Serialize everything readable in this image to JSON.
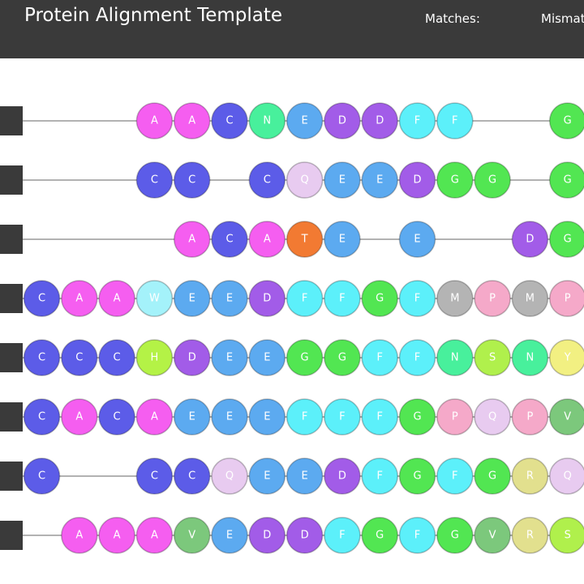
{
  "header": {
    "title": "Protein Alignment Template",
    "matches": "Matches:",
    "mismatches": "Mismatches:"
  },
  "colors": {
    "A": "#f55ef0",
    "C": "#5c5ce8",
    "N": "#48f09c",
    "E": "#5caaf0",
    "D": "#a25ce8",
    "F": "#5cf0fa",
    "G": "#52e652",
    "Q": "#e8cbf0",
    "T": "#f27a32",
    "W": "#a4f2fa",
    "M": "#b4b4b4",
    "P": "#f5a9c9",
    "H": "#b4f246",
    "S": "#b0f04c",
    "Y": "#f2f082",
    "V": "#7cc87c",
    "R": "#e2e08e"
  },
  "rows": [
    [
      null,
      null,
      null,
      "A",
      "A",
      "C",
      "N",
      "E",
      "D",
      "D",
      "F",
      "F",
      null,
      null,
      "G"
    ],
    [
      null,
      null,
      null,
      "C",
      "C",
      null,
      "C",
      "Q",
      "E",
      "E",
      "D",
      "G",
      "G",
      null,
      "G"
    ],
    [
      null,
      null,
      null,
      null,
      "A",
      "C",
      "A",
      "T",
      "E",
      null,
      "E",
      null,
      null,
      "D",
      "G"
    ],
    [
      "C",
      "A",
      "A",
      "W",
      "E",
      "E",
      "D",
      "F",
      "F",
      "G",
      "F",
      "M",
      "P",
      "M",
      "P"
    ],
    [
      "C",
      "C",
      "C",
      "H",
      "D",
      "E",
      "E",
      "G",
      "G",
      "F",
      "F",
      "N",
      "S",
      "N",
      "Y"
    ],
    [
      "C",
      "A",
      "C",
      "A",
      "E",
      "E",
      "E",
      "F",
      "F",
      "F",
      "G",
      "P",
      "Q",
      "P",
      "V"
    ],
    [
      "C",
      null,
      null,
      "C",
      "C",
      "Q",
      "E",
      "E",
      "D",
      "F",
      "G",
      "F",
      "G",
      "R",
      "Q"
    ],
    [
      null,
      "A",
      "A",
      "A",
      "V",
      "E",
      "D",
      "D",
      "F",
      "G",
      "F",
      "G",
      "V",
      "R",
      "S"
    ]
  ]
}
